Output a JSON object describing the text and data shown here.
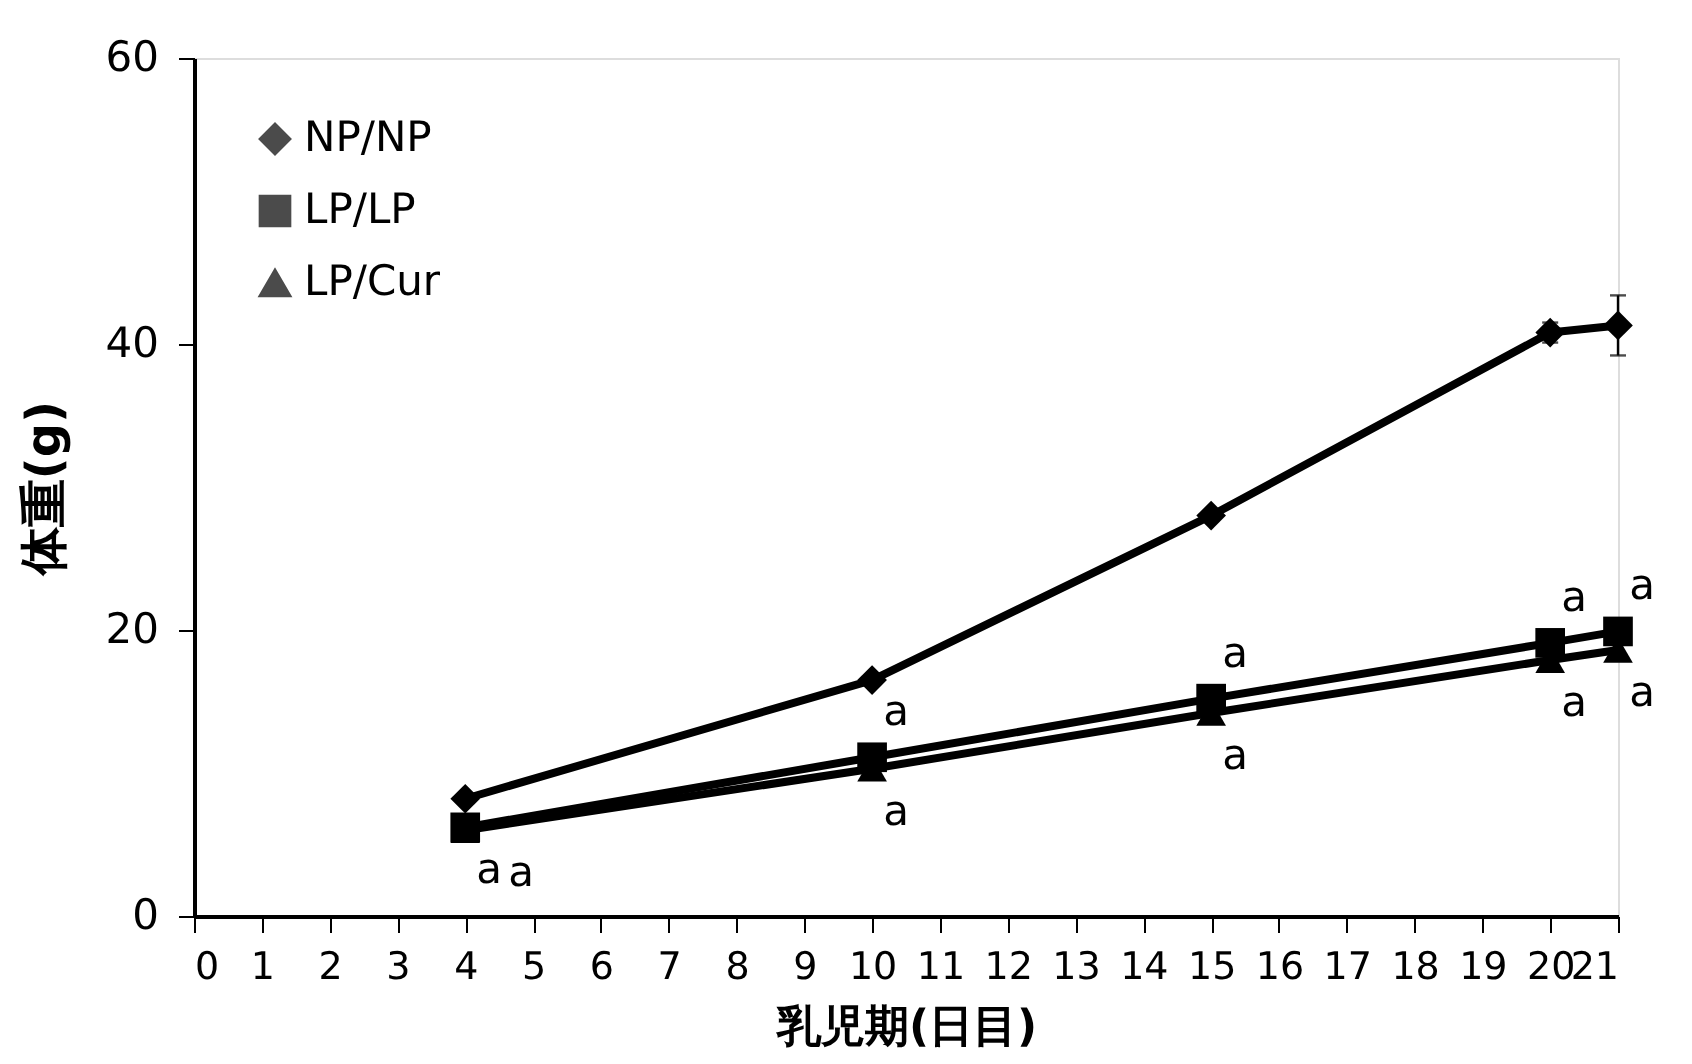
{
  "chart_data": {
    "type": "line",
    "xlabel": "乳児期(日目)",
    "ylabel": "体重(g)",
    "x": [
      4,
      10,
      15,
      20,
      21
    ],
    "series": [
      {
        "name": "NP/NP",
        "color": "#000000",
        "marker": "diamond",
        "values": [
          8.2,
          16.5,
          28.0,
          40.8,
          41.3
        ],
        "errors": [
          null,
          null,
          null,
          0.7,
          2.1
        ]
      },
      {
        "name": "LP/LP",
        "color": "#000000",
        "marker": "square",
        "values": [
          6.2,
          11.1,
          15.2,
          19.1,
          19.9
        ]
      },
      {
        "name": "LP/Cur",
        "color": "#000000",
        "marker": "triangle",
        "values": [
          6.0,
          10.3,
          14.2,
          17.9,
          18.6
        ]
      }
    ],
    "xlim": [
      0,
      21
    ],
    "xticks": [
      0,
      1,
      2,
      3,
      4,
      5,
      6,
      7,
      8,
      9,
      10,
      11,
      12,
      13,
      14,
      15,
      16,
      17,
      18,
      19,
      20,
      21
    ],
    "ylim": [
      0,
      60
    ],
    "yticks": [
      0,
      20,
      40,
      60
    ],
    "grid": false,
    "legend": "top left",
    "line_style": "solid",
    "annotations": [
      {
        "text": "a",
        "x": 4,
        "y": 6.2
      },
      {
        "text": "a",
        "x": 4,
        "y": 6.0
      },
      {
        "text": "a",
        "x": 10,
        "y": 11.1
      },
      {
        "text": "a",
        "x": 10,
        "y": 10.3
      },
      {
        "text": "a",
        "x": 15,
        "y": 15.2
      },
      {
        "text": "a",
        "x": 15,
        "y": 14.2
      },
      {
        "text": "a",
        "x": 20,
        "y": 19.1
      },
      {
        "text": "a",
        "x": 20,
        "y": 17.9
      },
      {
        "text": "a",
        "x": 21,
        "y": 19.9
      },
      {
        "text": "a",
        "x": 21,
        "y": 18.6
      }
    ]
  }
}
